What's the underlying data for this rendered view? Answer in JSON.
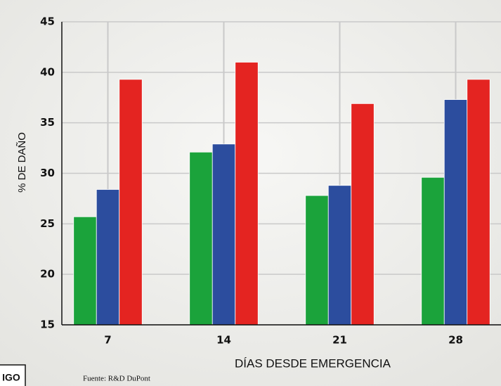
{
  "chart_data": {
    "type": "bar",
    "x_label": "DÍAS DESDE EMERGENCIA",
    "y_label": "% DE DAÑO",
    "source": "Fuente: R&D DuPont",
    "badge": "IGO",
    "categories": [
      "7",
      "14",
      "21",
      "28"
    ],
    "series": [
      {
        "color": "#1ba33b",
        "values": [
          25.7,
          32.1,
          27.8,
          29.6
        ]
      },
      {
        "color": "#2c4d9e",
        "values": [
          28.4,
          32.9,
          28.8,
          37.3
        ]
      },
      {
        "color": "#e42421",
        "values": [
          39.3,
          41.0,
          36.9,
          39.3
        ]
      }
    ],
    "ylim": [
      15,
      45
    ],
    "yticks": [
      15,
      20,
      25,
      30,
      35,
      40,
      45
    ],
    "grid": true
  }
}
